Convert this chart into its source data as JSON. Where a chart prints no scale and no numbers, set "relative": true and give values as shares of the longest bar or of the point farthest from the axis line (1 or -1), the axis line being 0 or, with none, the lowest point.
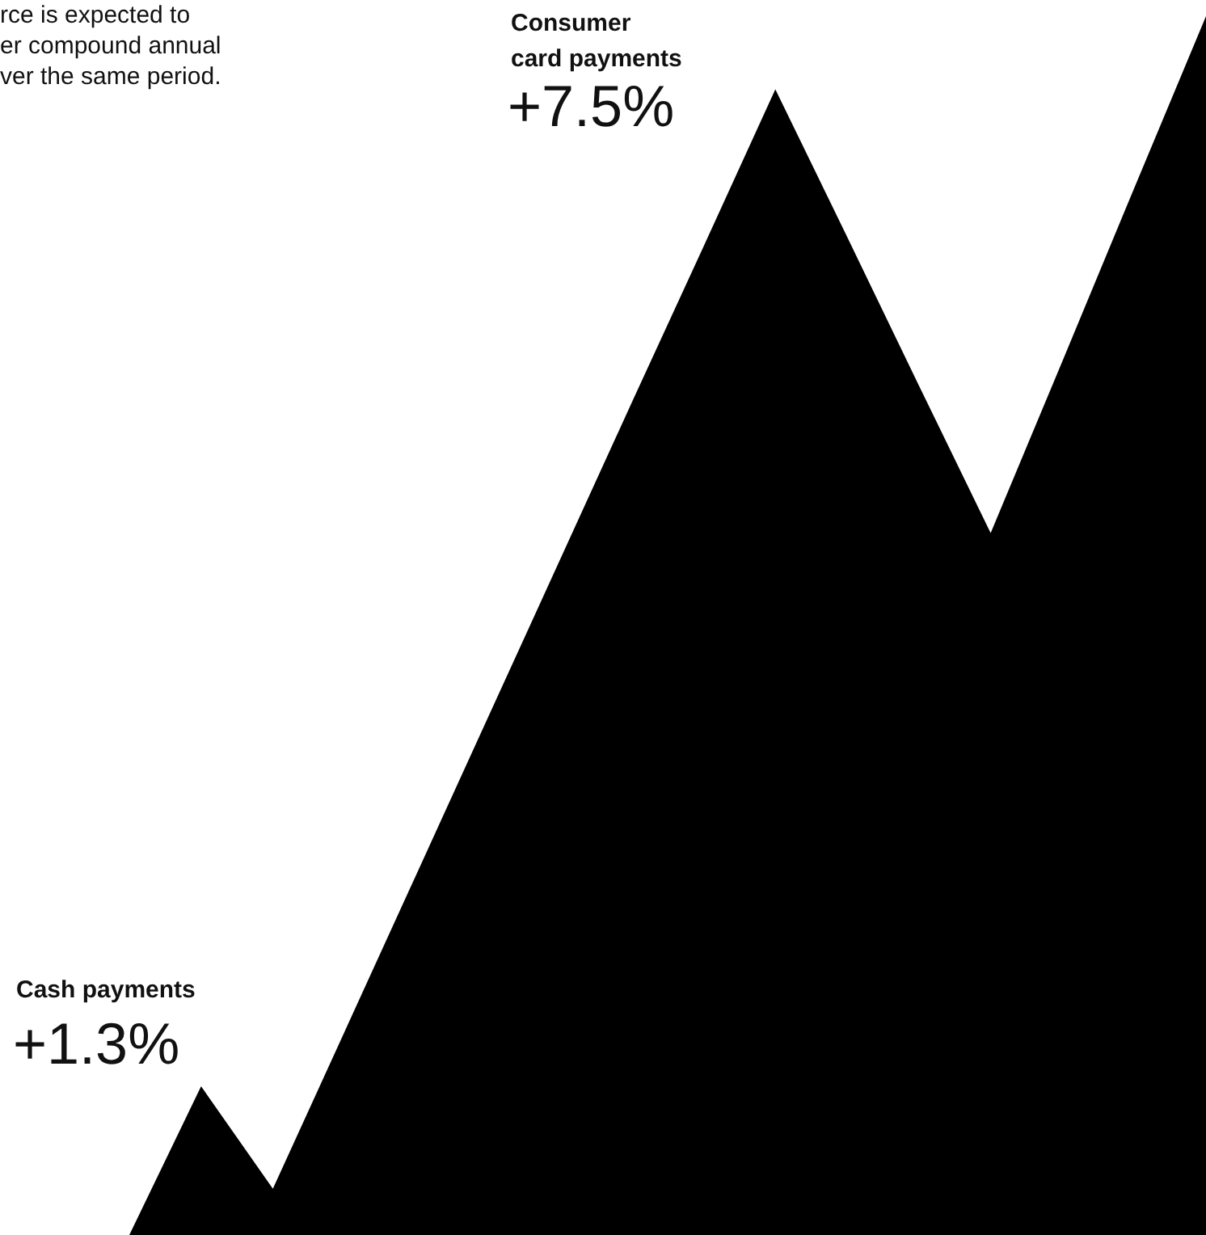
{
  "chart_data": {
    "type": "area",
    "relative": true,
    "categories": [
      null,
      null,
      null,
      null,
      null,
      null,
      null,
      null,
      null,
      null,
      null,
      null,
      null,
      null,
      null,
      null
    ],
    "series": [
      {
        "color": "#000000",
        "values": [
          0,
          0.122,
          0.038,
          0.167,
          0.296,
          0.425,
          0.554,
          0.683,
          0.811,
          0.94,
          0.819,
          0.697,
          0.576,
          0.717,
          0.859,
          1.0
        ]
      }
    ],
    "annotations": [
      "rce is expected to\ner compound annual\nver the same period.",
      "Consumer\ncard payments",
      "+7.5%",
      "Cash payments",
      "+1.3%"
    ]
  }
}
